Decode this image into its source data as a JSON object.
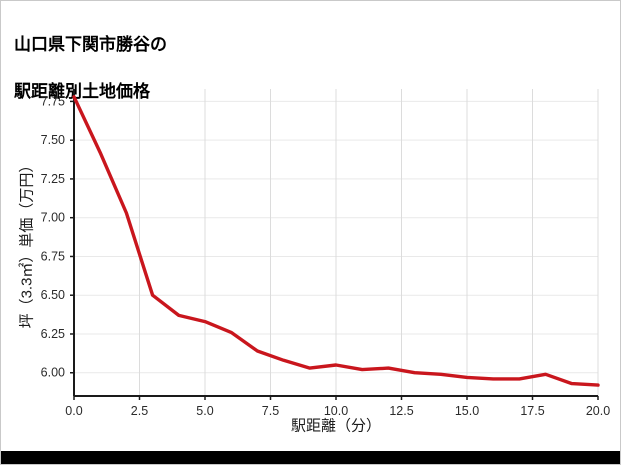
{
  "page": {
    "title_line1": "山口県下関市勝谷の",
    "title_line2": "駅距離別土地価格"
  },
  "chart_data": {
    "type": "line",
    "title": "山口県下関市勝谷の駅距離別土地価格",
    "xlabel": "駅距離（分）",
    "ylabel": "坪（3.3㎡）単価（万円）",
    "x": [
      0,
      1,
      2,
      3,
      4,
      5,
      6,
      7,
      8,
      9,
      10,
      11,
      12,
      13,
      14,
      15,
      16,
      17,
      18,
      19,
      20
    ],
    "y": [
      7.78,
      7.42,
      7.03,
      6.5,
      6.37,
      6.33,
      6.26,
      6.14,
      6.08,
      6.03,
      6.05,
      6.02,
      6.03,
      6.0,
      5.99,
      5.97,
      5.96,
      5.96,
      5.99,
      5.93,
      5.92
    ],
    "xlim": [
      0,
      20
    ],
    "ylim": [
      5.85,
      7.83
    ],
    "x_ticks": [
      0,
      2.5,
      5,
      7.5,
      10,
      12.5,
      15,
      17.5,
      20
    ],
    "x_tick_labels": [
      "0.0",
      "2.5",
      "5.0",
      "7.5",
      "10.0",
      "12.5",
      "15.0",
      "17.5",
      "20.0"
    ],
    "y_ticks": [
      6.0,
      6.25,
      6.5,
      6.75,
      7.0,
      7.25,
      7.5,
      7.75
    ],
    "y_tick_labels": [
      "6.00",
      "6.25",
      "6.50",
      "6.75",
      "7.00",
      "7.25",
      "7.50",
      "7.75"
    ],
    "line_color": "#c9161d",
    "axis_color": "#1a1a1a",
    "grid": true,
    "grid_color_v": "#dcdcdc",
    "grid_color_h": "#e9e9e9",
    "legend": null
  }
}
